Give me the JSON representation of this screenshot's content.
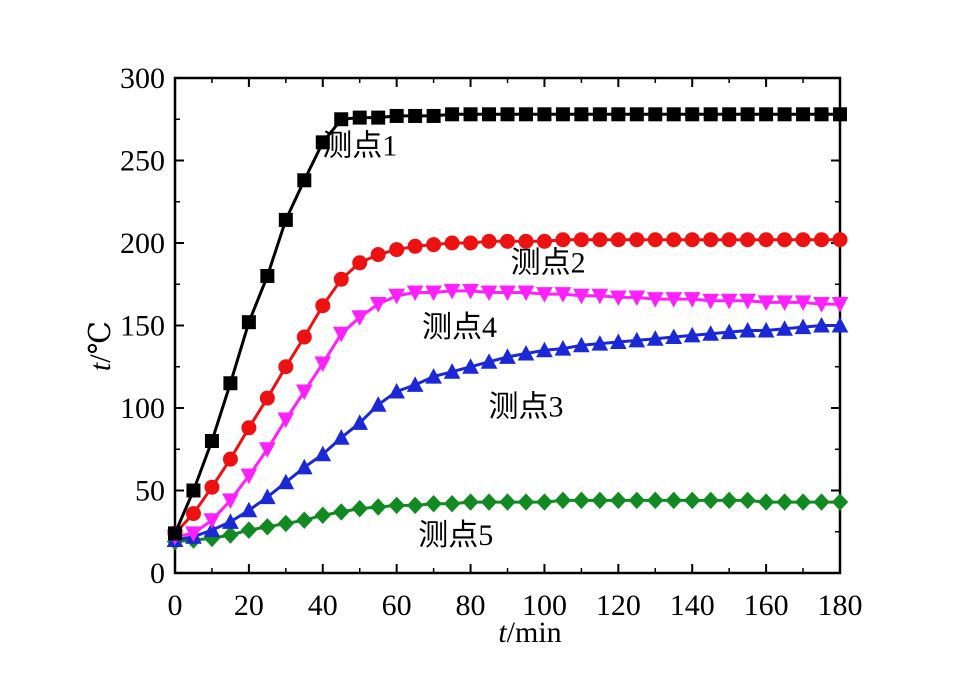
{
  "chart_data": {
    "type": "line",
    "x_axis": {
      "label_italic": "t",
      "label_rest": "/min",
      "range": [
        0,
        180
      ],
      "ticks": [
        0,
        20,
        40,
        60,
        80,
        100,
        120,
        140,
        160,
        180
      ]
    },
    "y_axis": {
      "label_italic": "t",
      "label_rest": "/℃",
      "range": [
        0,
        300
      ],
      "ticks": [
        0,
        50,
        100,
        150,
        200,
        250,
        300
      ]
    },
    "grid": false,
    "legend": "inline labels",
    "series": [
      {
        "name": "测点1",
        "color": "#000000",
        "marker": "square",
        "x": [
          0,
          5,
          10,
          15,
          20,
          25,
          30,
          35,
          40,
          45,
          50,
          55,
          60,
          65,
          70,
          75,
          80,
          85,
          90,
          95,
          100,
          105,
          110,
          115,
          120,
          125,
          130,
          135,
          140,
          145,
          150,
          155,
          160,
          165,
          170,
          175,
          180
        ],
        "y": [
          24,
          50,
          80,
          115,
          152,
          180,
          214,
          238,
          261,
          275,
          276,
          276,
          277,
          277,
          277,
          278,
          278,
          278,
          278,
          278,
          278,
          278,
          278,
          278,
          278,
          278,
          278,
          278,
          278,
          278,
          278,
          278,
          278,
          278,
          278,
          278,
          278
        ]
      },
      {
        "name": "测点2",
        "color": "#ee1111",
        "marker": "circle",
        "x": [
          0,
          5,
          10,
          15,
          20,
          25,
          30,
          35,
          40,
          45,
          50,
          55,
          60,
          65,
          70,
          75,
          80,
          85,
          90,
          95,
          100,
          105,
          110,
          115,
          120,
          125,
          130,
          135,
          140,
          145,
          150,
          155,
          160,
          165,
          170,
          175,
          180
        ],
        "y": [
          24,
          36,
          52,
          69,
          88,
          106,
          125,
          143,
          162,
          178,
          188,
          193,
          196,
          198,
          199,
          200,
          200,
          201,
          201,
          201,
          201,
          202,
          202,
          202,
          202,
          202,
          202,
          202,
          202,
          202,
          202,
          202,
          202,
          202,
          202,
          202,
          202
        ]
      },
      {
        "name": "测点3",
        "color": "#1a28d6",
        "marker": "triangle-up",
        "x": [
          0,
          5,
          10,
          15,
          20,
          25,
          30,
          35,
          40,
          45,
          50,
          55,
          60,
          65,
          70,
          75,
          80,
          85,
          90,
          95,
          100,
          105,
          110,
          115,
          120,
          125,
          130,
          135,
          140,
          145,
          150,
          155,
          160,
          165,
          170,
          175,
          180
        ],
        "y": [
          20,
          22,
          26,
          31,
          38,
          46,
          55,
          64,
          72,
          82,
          91,
          102,
          110,
          114,
          119,
          122,
          125,
          128,
          131,
          133,
          135,
          136,
          138,
          139,
          140,
          141,
          142,
          143,
          144,
          145,
          146,
          147,
          147,
          148,
          149,
          150,
          150
        ]
      },
      {
        "name": "测点4",
        "color": "#ff20ff",
        "marker": "triangle-down",
        "x": [
          0,
          5,
          10,
          15,
          20,
          25,
          30,
          35,
          40,
          45,
          50,
          55,
          60,
          65,
          70,
          75,
          80,
          85,
          90,
          95,
          100,
          105,
          110,
          115,
          120,
          125,
          130,
          135,
          140,
          145,
          150,
          155,
          160,
          165,
          170,
          175,
          180
        ],
        "y": [
          22,
          24,
          32,
          44,
          59,
          75,
          93,
          110,
          127,
          145,
          155,
          163,
          168,
          170,
          170,
          171,
          171,
          170,
          170,
          170,
          169,
          169,
          168,
          168,
          167,
          167,
          166,
          166,
          166,
          165,
          165,
          165,
          164,
          164,
          164,
          163,
          163
        ]
      },
      {
        "name": "测点5",
        "color": "#118a22",
        "marker": "diamond",
        "x": [
          0,
          5,
          10,
          15,
          20,
          25,
          30,
          35,
          40,
          45,
          50,
          55,
          60,
          65,
          70,
          75,
          80,
          85,
          90,
          95,
          100,
          105,
          110,
          115,
          120,
          125,
          130,
          135,
          140,
          145,
          150,
          155,
          160,
          165,
          170,
          175,
          180
        ],
        "y": [
          19,
          20,
          21,
          23,
          26,
          28,
          30,
          32,
          35,
          37,
          39,
          40,
          41,
          41,
          42,
          42,
          43,
          43,
          43,
          43,
          43,
          44,
          44,
          44,
          44,
          44,
          44,
          44,
          44,
          44,
          44,
          44,
          43,
          43,
          43,
          43,
          43
        ]
      }
    ]
  }
}
